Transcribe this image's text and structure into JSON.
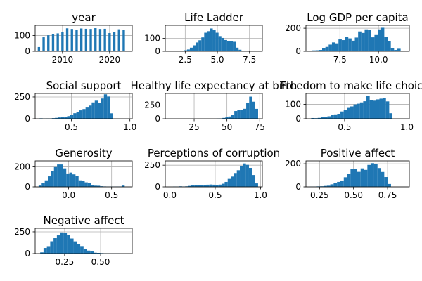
{
  "figure": {
    "background": "#ffffff",
    "bar_color": "#1f77b4",
    "grid_color": "#b0b0b0"
  },
  "chart_data": [
    {
      "type": "bar",
      "title": "year",
      "grid": true,
      "xlim": [
        2004.2,
        2024.8
      ],
      "ylim": [
        0,
        165
      ],
      "xticks": [
        2010,
        2020
      ],
      "xtick_labels": [
        "2010",
        "2020"
      ],
      "yticks": [
        0,
        100
      ],
      "ytick_labels": [
        "0",
        "100"
      ],
      "bins": {
        "start": 2005,
        "width": 0.6,
        "step": 0.6
      },
      "bars": [
        {
          "x": 2005,
          "w": 0.5,
          "v": 27
        },
        {
          "x": 2006,
          "w": 0.5,
          "v": 89
        },
        {
          "x": 2007,
          "w": 0.5,
          "v": 102
        },
        {
          "x": 2008,
          "w": 0.5,
          "v": 110
        },
        {
          "x": 2009,
          "w": 0.5,
          "v": 114
        },
        {
          "x": 2010,
          "w": 0.5,
          "v": 124
        },
        {
          "x": 2011,
          "w": 0.5,
          "v": 146
        },
        {
          "x": 2012,
          "w": 0.5,
          "v": 142
        },
        {
          "x": 2013,
          "w": 0.5,
          "v": 136
        },
        {
          "x": 2014,
          "w": 0.5,
          "v": 145
        },
        {
          "x": 2015,
          "w": 0.5,
          "v": 143
        },
        {
          "x": 2016,
          "w": 0.5,
          "v": 142
        },
        {
          "x": 2017,
          "w": 0.5,
          "v": 147
        },
        {
          "x": 2018,
          "w": 0.5,
          "v": 142
        },
        {
          "x": 2019,
          "w": 0.5,
          "v": 143
        },
        {
          "x": 2020,
          "w": 0.5,
          "v": 116
        },
        {
          "x": 2021,
          "w": 0.5,
          "v": 122
        },
        {
          "x": 2022,
          "w": 0.5,
          "v": 140
        },
        {
          "x": 2023,
          "w": 0.5,
          "v": 136
        }
      ]
    },
    {
      "type": "bar",
      "title": "Life Ladder",
      "grid": true,
      "xlim": [
        0.95,
        8.5
      ],
      "ylim": [
        0,
        200
      ],
      "xticks": [
        2.5,
        5.0,
        7.5
      ],
      "xtick_labels": [
        "2.5",
        "5.0",
        "7.5"
      ],
      "yticks": [
        0,
        100
      ],
      "ytick_labels": [
        "0",
        "100"
      ],
      "bins": {
        "start": 1.3,
        "width": 0.223
      },
      "values": [
        2,
        0,
        3,
        5,
        4,
        8,
        14,
        28,
        46,
        68,
        85,
        107,
        143,
        155,
        176,
        162,
        143,
        117,
        103,
        87,
        81,
        80,
        73,
        28,
        12,
        3
      ]
    },
    {
      "type": "bar",
      "title": "Log GDP per capita",
      "grid": true,
      "xlim": [
        5.3,
        12.0
      ],
      "ylim": [
        0,
        225
      ],
      "xticks": [
        7.5,
        10.0
      ],
      "xtick_labels": [
        "7.5",
        "10.0"
      ],
      "yticks": [
        0,
        200
      ],
      "ytick_labels": [
        "0",
        "200"
      ],
      "bins": {
        "start": 5.5,
        "width": 0.212
      },
      "values": [
        5,
        8,
        9,
        12,
        29,
        38,
        58,
        77,
        69,
        103,
        97,
        126,
        112,
        92,
        119,
        172,
        159,
        190,
        186,
        121,
        141,
        190,
        204,
        125,
        91,
        30,
        12,
        22
      ]
    },
    {
      "type": "bar",
      "title": "Social support",
      "grid": true,
      "xlim": [
        0.19,
        1.02
      ],
      "ylim": [
        0,
        290
      ],
      "xticks": [
        0.5,
        1.0
      ],
      "xtick_labels": [
        "0.5",
        "1.0"
      ],
      "yticks": [
        0,
        250
      ],
      "ytick_labels": [
        "0",
        "250"
      ],
      "bins": {
        "start": 0.228,
        "width": 0.0262
      },
      "values": [
        5,
        2,
        4,
        3,
        7,
        10,
        15,
        16,
        24,
        30,
        45,
        63,
        75,
        96,
        111,
        128,
        151,
        187,
        207,
        183,
        232,
        280,
        255,
        62
      ]
    },
    {
      "type": "bar",
      "title": "Healthy life expectancy at birth",
      "grid": true,
      "xlim": [
        3,
        77
      ],
      "ylim": [
        0,
        460
      ],
      "xticks": [
        25,
        50,
        75
      ],
      "xtick_labels": [
        "25",
        "50",
        "75"
      ],
      "yticks": [
        0,
        250
      ],
      "ytick_labels": [
        "0",
        "250"
      ],
      "bins": {
        "start": 42,
        "width": 2.27
      },
      "values": [
        4,
        6,
        15,
        30,
        41,
        75,
        140,
        158,
        161,
        181,
        290,
        402,
        310,
        180
      ]
    },
    {
      "type": "bar",
      "title": "Freedom to make life choices",
      "grid": true,
      "xlim": [
        0.19,
        1.02
      ],
      "ylim": [
        0,
        175
      ],
      "xticks": [
        0.5,
        1.0
      ],
      "xtick_labels": [
        "0.5",
        "1.0"
      ],
      "yticks": [
        0,
        100
      ],
      "ytick_labels": [
        "0",
        "100"
      ],
      "bins": {
        "start": 0.232,
        "width": 0.0261
      },
      "values": [
        5,
        4,
        6,
        10,
        13,
        17,
        25,
        30,
        34,
        50,
        60,
        75,
        85,
        99,
        104,
        113,
        121,
        160,
        131,
        125,
        134,
        139,
        145,
        120,
        38
      ]
    },
    {
      "type": "bar",
      "title": "Generosity",
      "grid": true,
      "xlim": [
        -0.39,
        0.74
      ],
      "ylim": [
        0,
        260
      ],
      "xticks": [
        0.0,
        0.5
      ],
      "xtick_labels": [
        "0.0",
        "0.5"
      ],
      "yticks": [
        0,
        200
      ],
      "ytick_labels": [
        "0",
        "200"
      ],
      "bins": {
        "start": -0.35,
        "width": 0.0358
      },
      "values": [
        13,
        35,
        65,
        105,
        160,
        198,
        224,
        224,
        185,
        134,
        143,
        125,
        107,
        65,
        63,
        45,
        40,
        20,
        12,
        11,
        6,
        4,
        2,
        3,
        2,
        3,
        3,
        13
      ]
    },
    {
      "type": "bar",
      "title": "Perceptions of corruption",
      "grid": true,
      "xlim": [
        -0.05,
        1.02
      ],
      "ylim": [
        0,
        300
      ],
      "xticks": [
        0.0,
        0.5,
        1.0
      ],
      "xtick_labels": [
        "0.0",
        "0.5",
        "1.0"
      ],
      "yticks": [
        0,
        250
      ],
      "ytick_labels": [
        "0",
        "250"
      ],
      "bins": {
        "start": 0.035,
        "width": 0.0335
      },
      "values": [
        3,
        2,
        6,
        4,
        6,
        11,
        16,
        22,
        20,
        19,
        17,
        25,
        27,
        25,
        24,
        26,
        36,
        57,
        92,
        119,
        160,
        192,
        238,
        270,
        254,
        219,
        137,
        40
      ]
    },
    {
      "type": "bar",
      "title": "Positive affect",
      "grid": true,
      "xlim": [
        0.15,
        0.91
      ],
      "ylim": [
        0,
        225
      ],
      "xticks": [
        0.25,
        0.5,
        0.75
      ],
      "xtick_labels": [
        "0.25",
        "0.50",
        "0.75"
      ],
      "yticks": [
        0,
        200
      ],
      "ytick_labels": [
        "0",
        "200"
      ],
      "bins": {
        "start": 0.18,
        "width": 0.0248
      },
      "values": [
        2,
        2,
        4,
        5,
        8,
        10,
        22,
        36,
        43,
        55,
        83,
        115,
        155,
        155,
        130,
        160,
        147,
        190,
        205,
        195,
        163,
        129,
        85,
        25
      ]
    },
    {
      "type": "bar",
      "title": "Negative affect",
      "grid": true,
      "xlim": [
        0.045,
        0.72
      ],
      "ylim": [
        0,
        290
      ],
      "xticks": [
        0.25,
        0.5
      ],
      "xtick_labels": [
        "0.25",
        "0.50"
      ],
      "yticks": [
        0,
        250
      ],
      "ytick_labels": [
        "0",
        "250"
      ],
      "bins": {
        "start": 0.08,
        "width": 0.0232
      },
      "values": [
        14,
        64,
        85,
        141,
        177,
        209,
        243,
        236,
        214,
        173,
        140,
        110,
        86,
        55,
        34,
        24,
        10,
        8,
        5,
        2,
        1,
        1,
        1,
        1
      ]
    }
  ]
}
